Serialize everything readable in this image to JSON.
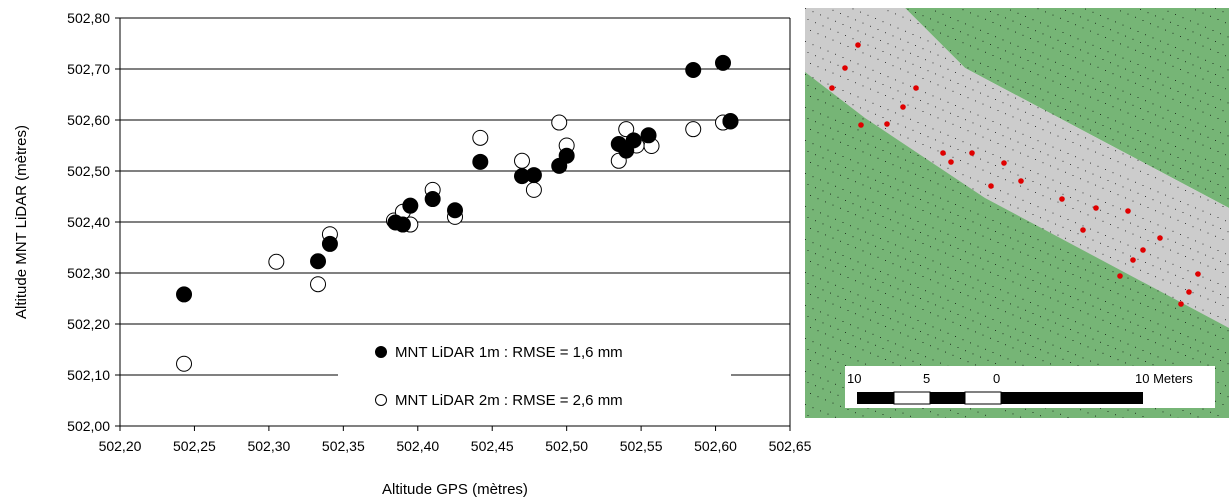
{
  "chart_data": {
    "type": "scatter",
    "xlabel": "Altitude GPS (mètres)",
    "ylabel": "Altitude MNT LiDAR (mètres)",
    "xlim": [
      502.2,
      502.65
    ],
    "ylim": [
      502.0,
      502.8
    ],
    "xticks": [
      "502,20",
      "502,25",
      "502,30",
      "502,35",
      "502,40",
      "502,45",
      "502,50",
      "502,55",
      "502,60",
      "502,65"
    ],
    "yticks": [
      "502,00",
      "502,10",
      "502,20",
      "502,30",
      "502,40",
      "502,50",
      "502,60",
      "502,70",
      "502,80"
    ],
    "grid": "horizontal",
    "legend_position": "bottom-center",
    "series": [
      {
        "name": "MNT LiDAR 1m : RMSE = 1,6 mm",
        "marker": "filled-circle",
        "color": "#000000",
        "points": [
          [
            502.243,
            502.258
          ],
          [
            502.333,
            502.323
          ],
          [
            502.341,
            502.357
          ],
          [
            502.385,
            502.399
          ],
          [
            502.39,
            502.395
          ],
          [
            502.395,
            502.432
          ],
          [
            502.41,
            502.445
          ],
          [
            502.425,
            502.423
          ],
          [
            502.442,
            502.518
          ],
          [
            502.47,
            502.49
          ],
          [
            502.478,
            502.492
          ],
          [
            502.495,
            502.51
          ],
          [
            502.5,
            502.53
          ],
          [
            502.535,
            502.553
          ],
          [
            502.54,
            502.54
          ],
          [
            502.545,
            502.56
          ],
          [
            502.555,
            502.57
          ],
          [
            502.585,
            502.698
          ],
          [
            502.605,
            502.712
          ],
          [
            502.61,
            502.598
          ]
        ]
      },
      {
        "name": "MNT LiDAR 2m : RMSE = 2,6 mm",
        "marker": "open-circle",
        "color": "#000000",
        "points": [
          [
            502.243,
            502.122
          ],
          [
            502.305,
            502.322
          ],
          [
            502.333,
            502.278
          ],
          [
            502.341,
            502.376
          ],
          [
            502.384,
            502.403
          ],
          [
            502.39,
            502.42
          ],
          [
            502.395,
            502.395
          ],
          [
            502.41,
            502.463
          ],
          [
            502.425,
            502.41
          ],
          [
            502.442,
            502.565
          ],
          [
            502.47,
            502.52
          ],
          [
            502.478,
            502.463
          ],
          [
            502.495,
            502.595
          ],
          [
            502.5,
            502.55
          ],
          [
            502.535,
            502.52
          ],
          [
            502.54,
            502.582
          ],
          [
            502.547,
            502.55
          ],
          [
            502.557,
            502.549
          ],
          [
            502.585,
            502.582
          ],
          [
            502.605,
            502.595
          ],
          [
            502.61,
            502.597
          ]
        ]
      }
    ]
  },
  "map": {
    "colors": {
      "background": "#ffffff",
      "vegetation": "#76b576",
      "road": "#cccccc",
      "lidar_points": "#000000",
      "gps_points": "#e00000"
    },
    "scale_bar": {
      "labels": [
        "10",
        "5",
        "0",
        "10 Meters"
      ]
    }
  }
}
